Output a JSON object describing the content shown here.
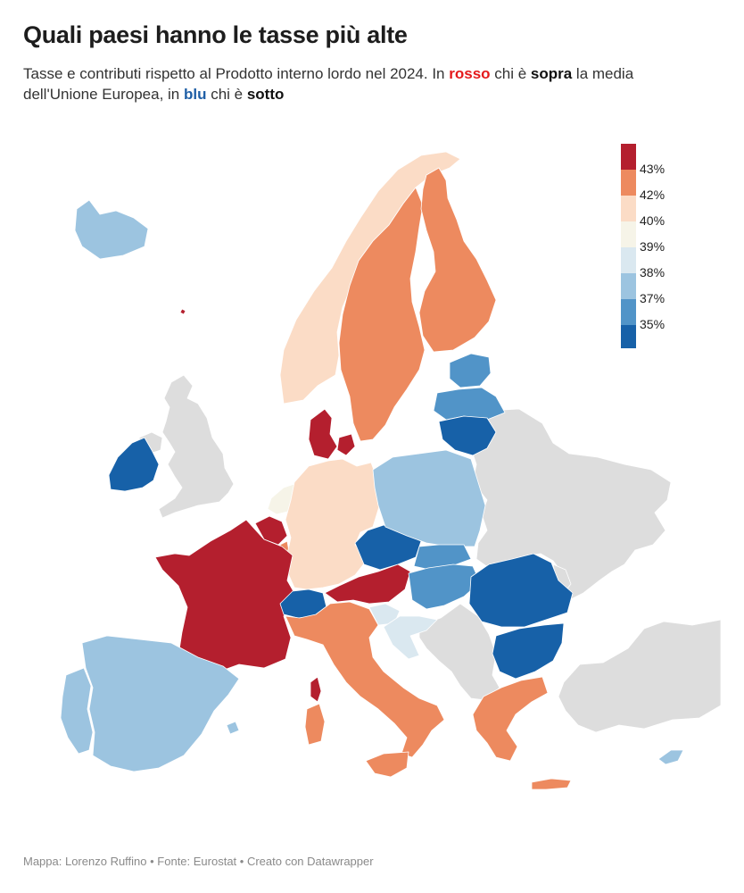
{
  "title": "Quali paesi hanno le tasse più alte",
  "subtitle": {
    "part1": "Tasse e contributi rispetto al Prodotto interno lordo nel 2024. In ",
    "red_word": "rosso",
    "part2": " chi è ",
    "above": "sopra",
    "part3": " la media dell'Unione Europea, in ",
    "blue_word": "blu",
    "part4": " chi è ",
    "below": "sotto"
  },
  "legend": {
    "ticks": [
      "43%",
      "42%",
      "40%",
      "39%",
      "38%",
      "37%",
      "35%"
    ],
    "colors": [
      "#b41f2e",
      "#ed8a5f",
      "#fbdcc6",
      "#f6f4e8",
      "#dae8f0",
      "#9cc4e0",
      "#5194c8",
      "#1761a8"
    ]
  },
  "colors": {
    "no_data": "#dddddd",
    "rosso": "#e41a1c",
    "blu": "#1f5fa6"
  },
  "footer": "Mappa: Lorenzo Ruffino • Fonte: Eurostat • Creato con Datawrapper"
}
